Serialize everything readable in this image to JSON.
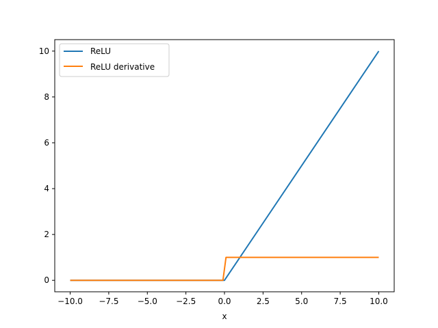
{
  "chart_data": {
    "type": "line",
    "title": "",
    "xlabel": "x",
    "ylabel": "",
    "xlim": [
      -11.0,
      11.0
    ],
    "ylim": [
      -0.5,
      10.5
    ],
    "xticks": [
      -10.0,
      -7.5,
      -5.0,
      -2.5,
      0.0,
      2.5,
      5.0,
      7.5,
      10.0
    ],
    "xtick_labels": [
      "−10.0",
      "−7.5",
      "−5.0",
      "−2.5",
      "0.0",
      "2.5",
      "5.0",
      "7.5",
      "10.0"
    ],
    "yticks": [
      0,
      2,
      4,
      6,
      8,
      10
    ],
    "ytick_labels": [
      "0",
      "2",
      "4",
      "6",
      "8",
      "10"
    ],
    "grid": false,
    "legend_position": "upper-left",
    "series": [
      {
        "name": "ReLU",
        "color": "#1f77b4",
        "points": [
          [
            -10,
            0
          ],
          [
            0,
            0
          ],
          [
            10,
            10
          ]
        ]
      },
      {
        "name": "ReLU derivative",
        "color": "#ff7f0e",
        "points": [
          [
            -10,
            0
          ],
          [
            -0.1,
            0
          ],
          [
            0.1,
            1
          ],
          [
            10,
            1
          ]
        ]
      }
    ]
  }
}
